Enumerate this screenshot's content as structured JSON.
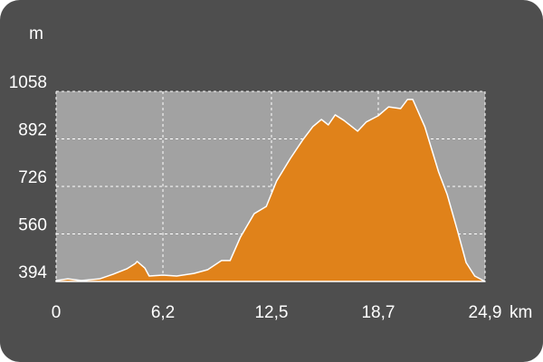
{
  "chart_data": {
    "type": "area",
    "x_label": "km",
    "y_label": "m",
    "x": [
      0,
      0.68,
      1.47,
      2.52,
      3.3,
      4.1,
      4.6,
      4.7,
      5.15,
      5.4,
      6.2,
      7.0,
      8.0,
      8.8,
      9.6,
      10.1,
      10.7,
      11.5,
      12.2,
      12.8,
      13.6,
      14.3,
      14.9,
      15.4,
      15.8,
      16.2,
      16.7,
      17.5,
      18.0,
      18.7,
      19.3,
      20.0,
      20.4,
      20.7,
      21.4,
      22.2,
      22.7,
      23.3,
      23.8,
      24.3,
      24.9
    ],
    "values": [
      397,
      403,
      397,
      403,
      419,
      438,
      457,
      464,
      441,
      413,
      416,
      413,
      422,
      435,
      467,
      467,
      549,
      631,
      656,
      745,
      824,
      887,
      935,
      960,
      941,
      976,
      957,
      919,
      951,
      973,
      1004,
      998,
      1030,
      1030,
      935,
      777,
      698,
      571,
      460,
      413,
      394
    ],
    "color": "#e0821a",
    "xlim": [
      0,
      24.9
    ],
    "ylim": [
      394,
      1058
    ],
    "xticks": [
      0,
      {
        "value": 6.2,
        "label": "6,2"
      },
      {
        "value": 12.5,
        "label": "12,5"
      },
      {
        "value": 18.7,
        "label": "18,7"
      },
      {
        "value": 24.9,
        "label": "24,9"
      }
    ],
    "yticks": [
      394,
      560,
      726,
      892,
      1058
    ],
    "grid": true
  }
}
